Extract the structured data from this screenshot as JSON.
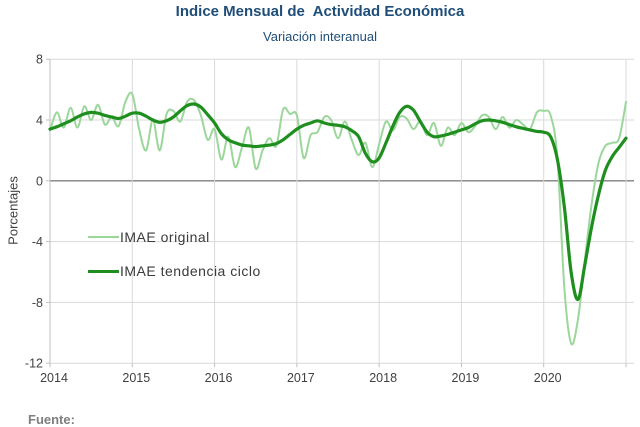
{
  "header": {
    "title": "Indice Mensual de  Actividad Económica",
    "subtitle": "Variación interanual"
  },
  "footer": {
    "source_label": "Fuente:"
  },
  "axes": {
    "y_label": "Porcentajes",
    "y_ticks": [
      8,
      4,
      0,
      -4,
      -8,
      -12
    ],
    "x_ticks": [
      "2014",
      "2015",
      "2016",
      "2017",
      "2018",
      "2019",
      "2020"
    ]
  },
  "legend": {
    "items": [
      {
        "label": "IMAE original",
        "color": "#9BD69B"
      },
      {
        "label": "IMAE tendencia ciclo",
        "color": "#1E8F1E"
      }
    ]
  },
  "colors": {
    "title_blue": "#1F4E79",
    "gridline": "#D9D9D9",
    "axis_line": "#BFBFBF",
    "zero_line": "#7F7F7F",
    "tick_text": "#404040",
    "series_original": "#9BD69B",
    "series_trend": "#1E8F1E"
  },
  "chart_data": {
    "type": "line",
    "title": "Indice Mensual de  Actividad Económica",
    "subtitle": "Variación interanual",
    "ylabel": "Porcentajes",
    "ylim": [
      -12,
      8
    ],
    "y_tick_step": 4,
    "grid": true,
    "legend_position": "inside-left",
    "x_unit": "month",
    "x_start": "2014-01",
    "x_end": "2021-01",
    "x_year_ticks": [
      "2014",
      "2015",
      "2016",
      "2017",
      "2018",
      "2019",
      "2020"
    ],
    "series": [
      {
        "name": "IMAE original",
        "color": "#9BD69B",
        "width": 2,
        "values": [
          3.3,
          4.5,
          3.5,
          4.8,
          3.5,
          4.9,
          4.0,
          5.0,
          3.7,
          4.2,
          3.6,
          5.2,
          5.7,
          3.4,
          2.0,
          4.0,
          2.0,
          4.4,
          4.6,
          3.9,
          5.2,
          5.3,
          4.3,
          2.7,
          3.4,
          1.4,
          2.9,
          0.9,
          2.2,
          3.5,
          0.8,
          2.0,
          2.8,
          2.3,
          4.7,
          4.4,
          4.3,
          1.5,
          3.0,
          3.2,
          4.2,
          4.0,
          2.8,
          3.9,
          2.7,
          1.7,
          2.5,
          0.9,
          2.4,
          3.9,
          3.3,
          4.2,
          4.1,
          3.4,
          3.9,
          3.0,
          3.8,
          2.3,
          3.5,
          3.0,
          3.8,
          3.2,
          3.6,
          4.3,
          4.2,
          3.4,
          4.2,
          3.5,
          4.0,
          3.7,
          3.4,
          4.5,
          4.6,
          4.3,
          1.5,
          -7.0,
          -10.7,
          -9.1,
          -5.2,
          -1.5,
          1.2,
          2.3,
          2.5,
          2.8,
          5.2
        ]
      },
      {
        "name": "IMAE tendencia ciclo",
        "color": "#1E8F1E",
        "width": 3.2,
        "values": [
          3.4,
          3.55,
          3.75,
          3.95,
          4.2,
          4.4,
          4.5,
          4.45,
          4.3,
          4.2,
          4.1,
          4.25,
          4.45,
          4.45,
          4.25,
          4.0,
          3.85,
          3.95,
          4.2,
          4.6,
          4.95,
          5.05,
          4.85,
          4.35,
          3.8,
          3.1,
          2.7,
          2.5,
          2.35,
          2.3,
          2.25,
          2.3,
          2.35,
          2.45,
          2.7,
          3.05,
          3.4,
          3.65,
          3.8,
          3.95,
          3.8,
          3.7,
          3.65,
          3.55,
          3.3,
          2.9,
          1.8,
          1.25,
          1.5,
          2.5,
          3.6,
          4.5,
          4.9,
          4.65,
          3.9,
          3.2,
          2.9,
          2.95,
          3.05,
          3.2,
          3.35,
          3.5,
          3.75,
          3.95,
          4.0,
          3.95,
          3.85,
          3.7,
          3.55,
          3.45,
          3.35,
          3.25,
          3.2,
          2.9,
          1.4,
          -1.7,
          -6.0,
          -7.8,
          -5.5,
          -3.0,
          -0.9,
          0.7,
          1.6,
          2.2,
          2.8
        ]
      }
    ]
  }
}
